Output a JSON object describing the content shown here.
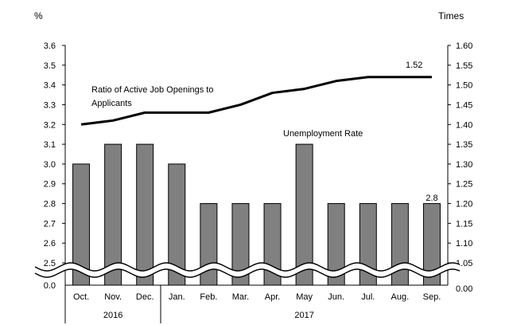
{
  "chart_data": {
    "type": "bar",
    "title": "",
    "left_axis_unit": "%",
    "right_axis_unit": "Times",
    "left_axis": {
      "ticks": [
        "3.6",
        "3.5",
        "3.4",
        "3.3",
        "3.2",
        "3.1",
        "3.0",
        "2.9",
        "2.8",
        "2.7",
        "2.6",
        "2.5"
      ],
      "zero_label": "0.0",
      "ylim": [
        0.0,
        3.6
      ],
      "break": [
        0.0,
        2.5
      ]
    },
    "right_axis": {
      "ticks": [
        "1.60",
        "1.55",
        "1.50",
        "1.45",
        "1.40",
        "1.35",
        "1.30",
        "1.25",
        "1.20",
        "1.15",
        "1.10",
        "1.05"
      ],
      "zero_label": "0.00",
      "ylim": [
        0.0,
        1.6
      ],
      "break": [
        0.0,
        1.05
      ]
    },
    "categories": [
      "Oct.",
      "Nov.",
      "Dec.",
      "Jan.",
      "Feb.",
      "Mar.",
      "Apr.",
      "May",
      "Jun.",
      "Jul.",
      "Aug.",
      "Sep."
    ],
    "years": [
      {
        "label": "2016",
        "from": 0,
        "to": 2
      },
      {
        "label": "2017",
        "from": 3,
        "to": 11
      }
    ],
    "series": [
      {
        "name": "Unemployment Rate",
        "type": "bar",
        "axis": "left",
        "color": "#808080",
        "values": [
          3.0,
          3.1,
          3.1,
          3.0,
          2.8,
          2.8,
          2.8,
          3.1,
          2.8,
          2.8,
          2.8,
          2.8
        ]
      },
      {
        "name": "Ratio of Active Job Openings to Applicants",
        "type": "line",
        "axis": "right",
        "color": "#000000",
        "values": [
          1.4,
          1.41,
          1.43,
          1.43,
          1.43,
          1.45,
          1.48,
          1.49,
          1.51,
          1.52,
          1.52,
          1.52
        ]
      }
    ],
    "annotations": {
      "line_label_lines": [
        "Ratio of Active Job Openings to",
        "Applicants"
      ],
      "bar_label": "Unemployment Rate",
      "last_line_value": "1.52",
      "last_bar_value": "2.8"
    },
    "grid": false
  }
}
